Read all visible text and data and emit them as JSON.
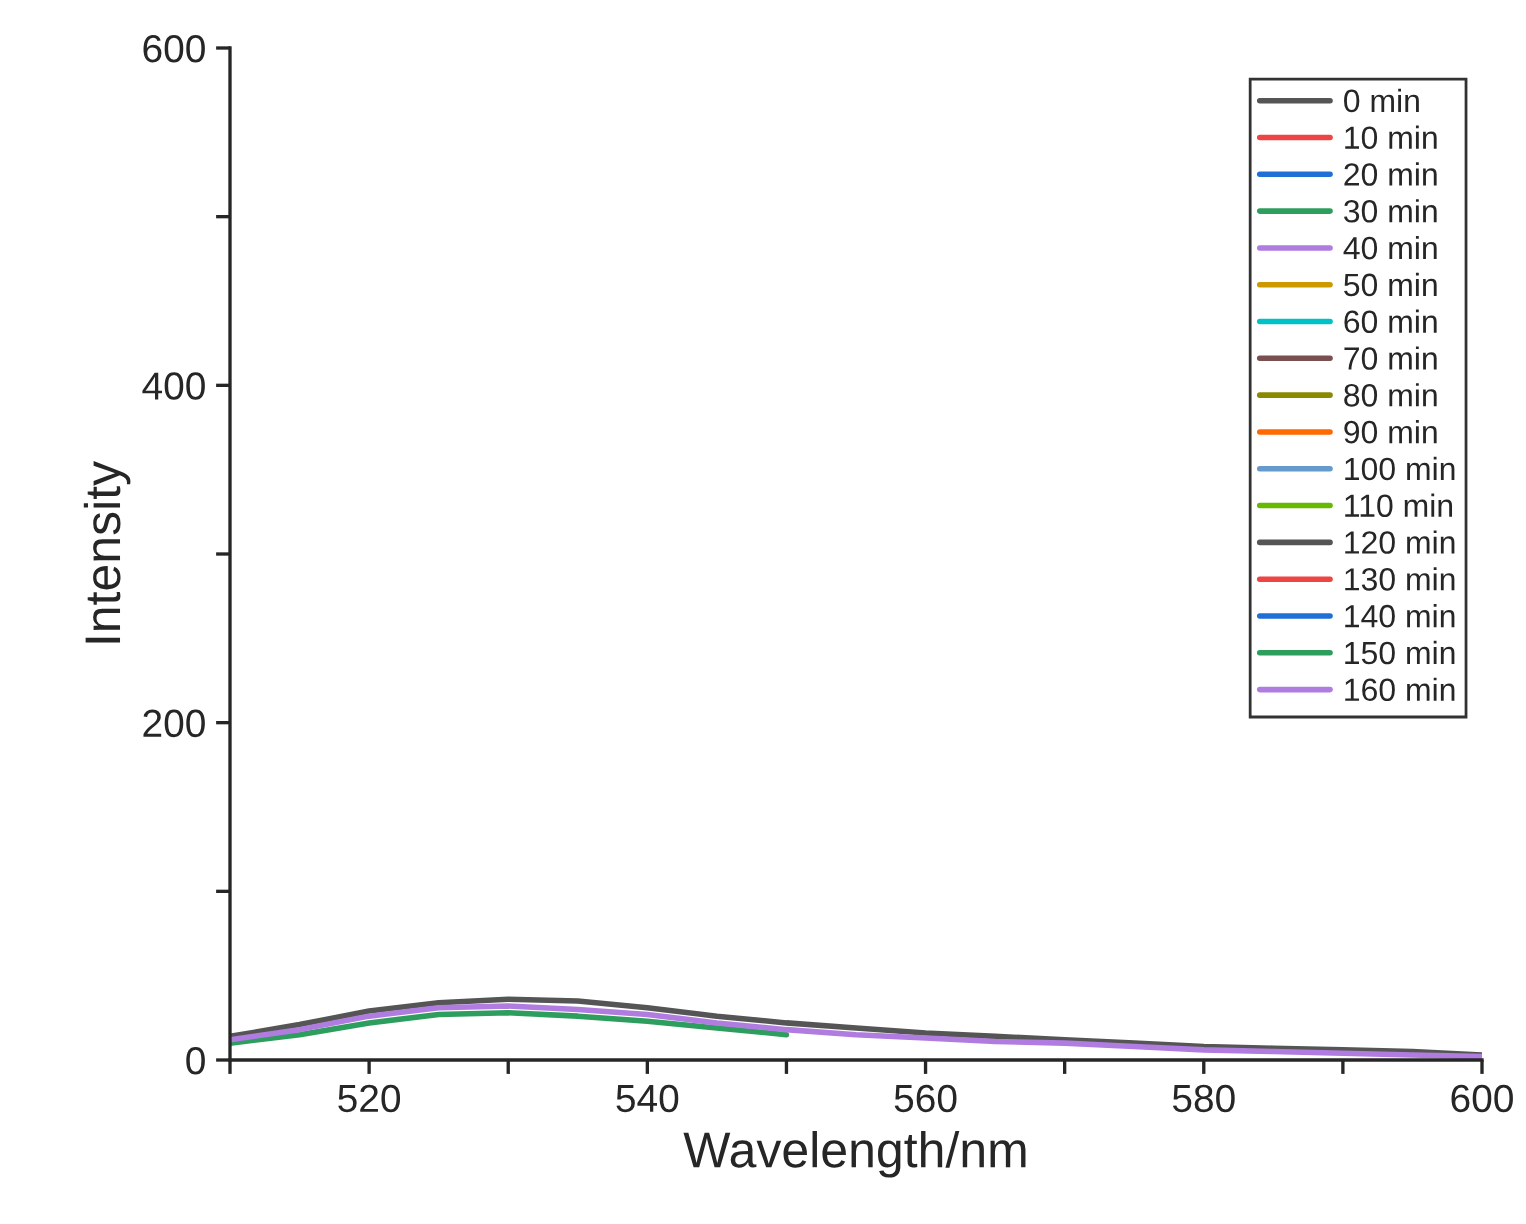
{
  "chart_data": {
    "type": "line",
    "xlabel": "Wavelength/nm",
    "ylabel": "Intensity",
    "xlim": [
      510,
      600
    ],
    "ylim": [
      0,
      600
    ],
    "xticks": [
      {
        "value": 510,
        "label": null
      },
      520,
      {
        "value": 530,
        "label": null
      },
      540,
      {
        "value": 550,
        "label": null
      },
      560,
      {
        "value": 570,
        "label": null
      },
      580,
      {
        "value": 590,
        "label": null
      },
      600
    ],
    "yticks": [
      0,
      {
        "value": 100,
        "label": null
      },
      200,
      {
        "value": 300,
        "label": null
      },
      400,
      {
        "value": 500,
        "label": null
      },
      600
    ],
    "x": [
      510,
      515,
      520,
      525,
      530,
      535,
      540,
      545,
      550,
      555,
      560,
      565,
      570,
      575,
      580,
      585,
      590,
      595,
      600
    ],
    "grid": false,
    "legend": "top right",
    "line_style": "solid",
    "marker": "none",
    "series": [
      {
        "name": "0 min",
        "color": "#555555",
        "values": [
          14,
          21,
          29,
          34,
          36,
          35,
          31,
          26,
          22,
          19,
          16,
          14,
          12,
          10,
          8,
          7,
          6,
          5,
          3
        ]
      },
      {
        "name": "10 min",
        "color": "#ee4444",
        "values": [
          null,
          null,
          null,
          null,
          null,
          null,
          null,
          null,
          null,
          null,
          null,
          null,
          null,
          null,
          null,
          null,
          null,
          null,
          null
        ]
      },
      {
        "name": "20 min",
        "color": "#1f6fd6",
        "values": [
          null,
          null,
          null,
          null,
          null,
          null,
          null,
          null,
          null,
          null,
          null,
          null,
          null,
          null,
          null,
          null,
          null,
          null,
          null
        ]
      },
      {
        "name": "30 min",
        "color": "#2e9e5e",
        "values": [
          null,
          null,
          null,
          null,
          null,
          null,
          null,
          null,
          null,
          null,
          null,
          null,
          null,
          null,
          null,
          null,
          null,
          null,
          null
        ]
      },
      {
        "name": "40 min",
        "color": "#b07ce0",
        "values": [
          null,
          null,
          null,
          null,
          null,
          null,
          null,
          null,
          null,
          null,
          null,
          null,
          null,
          null,
          null,
          null,
          null,
          null,
          null
        ]
      },
      {
        "name": "50 min",
        "color": "#cc9a00",
        "values": [
          null,
          null,
          null,
          null,
          null,
          null,
          null,
          null,
          null,
          null,
          null,
          null,
          null,
          null,
          null,
          null,
          null,
          null,
          null
        ]
      },
      {
        "name": "60 min",
        "color": "#00c0c8",
        "values": [
          null,
          null,
          null,
          null,
          null,
          null,
          null,
          null,
          null,
          null,
          null,
          null,
          null,
          null,
          null,
          null,
          null,
          null,
          null
        ]
      },
      {
        "name": "70 min",
        "color": "#7a4f4f",
        "values": [
          null,
          null,
          null,
          null,
          null,
          null,
          null,
          null,
          null,
          null,
          null,
          null,
          null,
          null,
          null,
          null,
          null,
          null,
          null
        ]
      },
      {
        "name": "80 min",
        "color": "#8a8a00",
        "values": [
          null,
          null,
          null,
          null,
          null,
          null,
          null,
          null,
          null,
          null,
          null,
          null,
          null,
          null,
          null,
          null,
          null,
          null,
          null
        ]
      },
      {
        "name": "90 min",
        "color": "#ff6a00",
        "values": [
          null,
          null,
          null,
          null,
          null,
          null,
          null,
          null,
          null,
          null,
          null,
          null,
          null,
          null,
          null,
          null,
          null,
          null,
          null
        ]
      },
      {
        "name": "100 min",
        "color": "#6699cc",
        "values": [
          null,
          null,
          null,
          null,
          null,
          null,
          null,
          null,
          null,
          null,
          null,
          null,
          null,
          null,
          null,
          null,
          null,
          null,
          null
        ]
      },
      {
        "name": "110 min",
        "color": "#66b800",
        "values": [
          null,
          null,
          null,
          null,
          null,
          null,
          null,
          null,
          null,
          null,
          null,
          null,
          null,
          null,
          null,
          null,
          null,
          null,
          null
        ]
      },
      {
        "name": "120 min",
        "color": "#555555",
        "values": [
          null,
          null,
          null,
          null,
          null,
          null,
          null,
          null,
          null,
          null,
          null,
          null,
          null,
          null,
          null,
          null,
          null,
          null,
          null
        ]
      },
      {
        "name": "130 min",
        "color": "#ee4444",
        "values": [
          null,
          null,
          null,
          null,
          null,
          null,
          null,
          null,
          null,
          null,
          null,
          null,
          null,
          null,
          null,
          null,
          null,
          null,
          null
        ]
      },
      {
        "name": "140 min",
        "color": "#1f6fd6",
        "values": [
          null,
          null,
          null,
          null,
          null,
          null,
          null,
          null,
          null,
          null,
          null,
          null,
          null,
          null,
          null,
          null,
          null,
          null,
          null
        ]
      },
      {
        "name": "150 min",
        "color": "#2e9e5e",
        "values": [
          10,
          15,
          22,
          27,
          28,
          26,
          23,
          19,
          15,
          null,
          null,
          null,
          null,
          null,
          null,
          null,
          null,
          null,
          null
        ]
      },
      {
        "name": "160 min",
        "color": "#b07ce0",
        "values": [
          12,
          18,
          26,
          31,
          32,
          30,
          27,
          22,
          18,
          15,
          13,
          11,
          10,
          8,
          6,
          5,
          4,
          3,
          2
        ]
      }
    ]
  }
}
